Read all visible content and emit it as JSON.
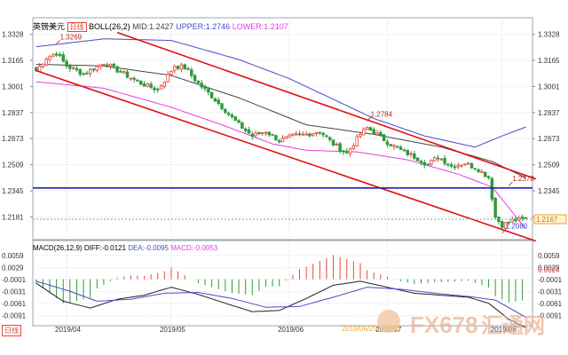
{
  "header": {
    "symbol": "英镑美元",
    "period": "日线",
    "boll_label": "BOLL(26,2)",
    "mid_label": "MID:1.2427",
    "upper_label": "UPPER:1.2746",
    "lower_label": "LOWER:1.2107"
  },
  "macd_header": {
    "label": "MACD(26,12,9)",
    "diff_label": "DIFF:-0.0121",
    "dea_label": "DEA:-0.0095",
    "macd_label": "MACD:-0.0053"
  },
  "bottom_left_label": "日线",
  "watermark": {
    "date_text": "2019/06/25 星期二",
    "brand": "FX678",
    "brand_cn": "汇通网"
  },
  "colors": {
    "up": "#e8443a",
    "down": "#2e9a3a",
    "mid": "#444444",
    "upper": "#4a4ac8",
    "lower": "#e040e0",
    "channel": "#e01010",
    "support": "#2020b0",
    "diff": "#222222",
    "dea": "#4a4ac8"
  },
  "chart_data": [
    {
      "type": "candlestick",
      "title": "英镑美元 日线",
      "y_axis": {
        "ticks": [
          1.3328,
          1.3165,
          1.3001,
          1.2837,
          1.2673,
          1.2509,
          1.2345,
          1.2181
        ],
        "ylim": [
          1.205,
          1.336
        ],
        "side": "right"
      },
      "x_axis": {
        "tick_labels": [
          "2019/04",
          "2019/05",
          "2019/06",
          "2019/07",
          "2019/08"
        ],
        "tick_index": [
          9,
          40,
          75,
          104,
          138
        ]
      },
      "current_price": 1.2167,
      "horizontal_lines": [
        {
          "label": "support",
          "value": 1.2363
        }
      ],
      "annotations": [
        {
          "text": "1.3269",
          "index": 6,
          "value": 1.3269
        },
        {
          "text": "1.2784",
          "index": 98,
          "value": 1.2784
        },
        {
          "text": "1.2378",
          "index": 140,
          "value": 1.2378
        },
        {
          "text": "1.2080",
          "index": 138,
          "value": 1.208
        }
      ],
      "channel_lines": [
        {
          "name": "upper channel",
          "from": {
            "index": 24,
            "value": 1.334
          },
          "to": {
            "index": 148,
            "value": 1.242
          }
        },
        {
          "name": "lower channel",
          "from": {
            "index": 0,
            "value": 1.31
          },
          "to": {
            "index": 148,
            "value": 1.203
          }
        }
      ],
      "bollinger": {
        "mid": 1.2427,
        "upper": 1.2746,
        "lower": 1.2107
      },
      "n_bars": 146,
      "anchors": [
        [
          0,
          1.31
        ],
        [
          3,
          1.318
        ],
        [
          6,
          1.321
        ],
        [
          9,
          1.313
        ],
        [
          14,
          1.308
        ],
        [
          20,
          1.315
        ],
        [
          26,
          1.308
        ],
        [
          31,
          1.302
        ],
        [
          36,
          1.298
        ],
        [
          41,
          1.313
        ],
        [
          44,
          1.312
        ],
        [
          48,
          1.302
        ],
        [
          52,
          1.294
        ],
        [
          56,
          1.285
        ],
        [
          60,
          1.276
        ],
        [
          64,
          1.269
        ],
        [
          68,
          1.272
        ],
        [
          72,
          1.266
        ],
        [
          76,
          1.269
        ],
        [
          80,
          1.27
        ],
        [
          84,
          1.272
        ],
        [
          88,
          1.264
        ],
        [
          92,
          1.258
        ],
        [
          96,
          1.27
        ],
        [
          98,
          1.274
        ],
        [
          101,
          1.27
        ],
        [
          104,
          1.265
        ],
        [
          108,
          1.26
        ],
        [
          112,
          1.256
        ],
        [
          116,
          1.251
        ],
        [
          119,
          1.256
        ],
        [
          123,
          1.25
        ],
        [
          127,
          1.252
        ],
        [
          131,
          1.248
        ],
        [
          134,
          1.243
        ],
        [
          136,
          1.218
        ],
        [
          138,
          1.213
        ],
        [
          141,
          1.216
        ],
        [
          145,
          1.2167
        ]
      ],
      "bands_mid_anchors": [
        [
          0,
          1.314
        ],
        [
          20,
          1.313
        ],
        [
          40,
          1.307
        ],
        [
          60,
          1.293
        ],
        [
          80,
          1.276
        ],
        [
          100,
          1.27
        ],
        [
          120,
          1.262
        ],
        [
          135,
          1.253
        ],
        [
          145,
          1.2427
        ]
      ],
      "bands_upper_anchors": [
        [
          0,
          1.325
        ],
        [
          20,
          1.33
        ],
        [
          40,
          1.329
        ],
        [
          60,
          1.317
        ],
        [
          75,
          1.305
        ],
        [
          90,
          1.29
        ],
        [
          100,
          1.28
        ],
        [
          115,
          1.269
        ],
        [
          130,
          1.262
        ],
        [
          138,
          1.269
        ],
        [
          145,
          1.2746
        ]
      ],
      "bands_lower_anchors": [
        [
          0,
          1.303
        ],
        [
          20,
          1.299
        ],
        [
          40,
          1.287
        ],
        [
          55,
          1.276
        ],
        [
          70,
          1.264
        ],
        [
          80,
          1.26
        ],
        [
          95,
          1.259
        ],
        [
          110,
          1.254
        ],
        [
          125,
          1.245
        ],
        [
          135,
          1.237
        ],
        [
          145,
          1.2107
        ]
      ]
    },
    {
      "type": "macd",
      "title": "MACD(26,12,9)",
      "y_axis": {
        "ticks": [
          0.0059,
          0.0029,
          -0.0001,
          -0.0031,
          -0.0061,
          -0.0091
        ],
        "ylim": [
          -0.0105,
          0.007
        ]
      },
      "macd_marker": 0.0024,
      "diff_anchors": [
        [
          0,
          -0.001
        ],
        [
          8,
          -0.0055
        ],
        [
          16,
          -0.0072
        ],
        [
          24,
          -0.005
        ],
        [
          32,
          -0.004
        ],
        [
          40,
          -0.002
        ],
        [
          48,
          -0.0038
        ],
        [
          56,
          -0.006
        ],
        [
          64,
          -0.0081
        ],
        [
          72,
          -0.0078
        ],
        [
          80,
          -0.0048
        ],
        [
          88,
          -0.0015
        ],
        [
          96,
          -0.0005
        ],
        [
          104,
          -0.002
        ],
        [
          112,
          -0.0035
        ],
        [
          120,
          -0.004
        ],
        [
          128,
          -0.0045
        ],
        [
          134,
          -0.006
        ],
        [
          140,
          -0.01
        ],
        [
          145,
          -0.0121
        ]
      ],
      "dea_anchors": [
        [
          0,
          -0.0005
        ],
        [
          10,
          -0.003
        ],
        [
          18,
          -0.0055
        ],
        [
          28,
          -0.005
        ],
        [
          38,
          -0.0035
        ],
        [
          48,
          -0.0033
        ],
        [
          58,
          -0.0048
        ],
        [
          68,
          -0.007
        ],
        [
          78,
          -0.0068
        ],
        [
          88,
          -0.0045
        ],
        [
          98,
          -0.002
        ],
        [
          108,
          -0.0025
        ],
        [
          118,
          -0.0035
        ],
        [
          128,
          -0.0043
        ],
        [
          136,
          -0.0052
        ],
        [
          145,
          -0.0095
        ]
      ]
    }
  ]
}
